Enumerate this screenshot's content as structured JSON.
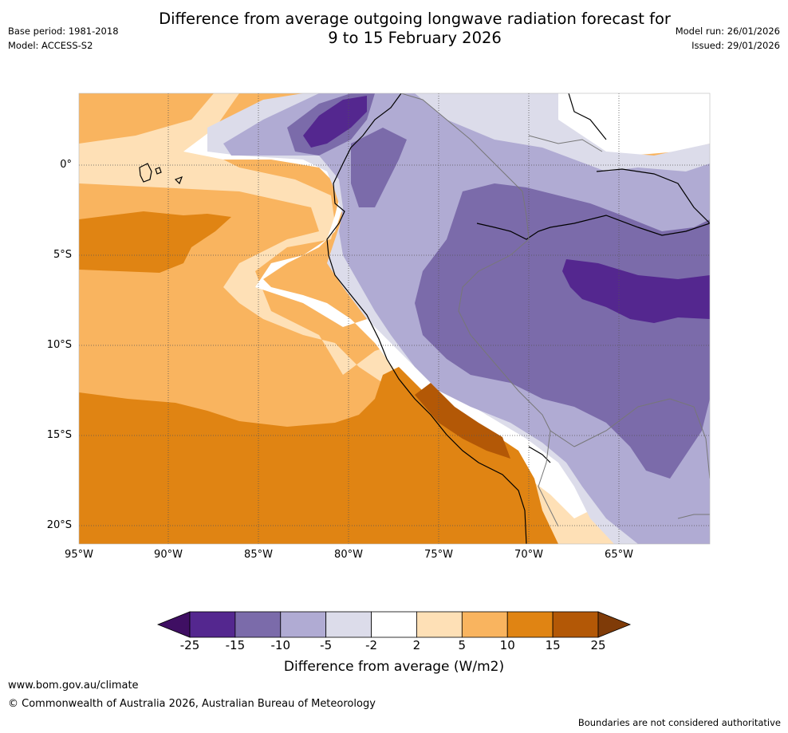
{
  "title_line1": "Difference from average outgoing longwave radiation forecast for",
  "title_line2": "9 to 15 February 2026",
  "base_period": "Base period: 1981-2018",
  "model": "Model: ACCESS-S2",
  "model_run": "Model run: 26/01/2026",
  "issued": "Issued: 29/01/2026",
  "map": {
    "lat_labels": [
      "0°",
      "5°S",
      "10°S",
      "15°S",
      "20°S"
    ],
    "lon_labels": [
      "95°W",
      "90°W",
      "85°W",
      "80°W",
      "75°W",
      "70°W",
      "65°W"
    ]
  },
  "colorbar": {
    "ticks": [
      "-25",
      "-15",
      "-10",
      "-5",
      "-2",
      "2",
      "5",
      "10",
      "15",
      "25"
    ],
    "colors": [
      "#3f0f63",
      "#54278f",
      "#7b6baa",
      "#b0abd3",
      "#dcdcea",
      "#ffffff",
      "#fee0b6",
      "#f9b45f",
      "#e08413",
      "#b35806",
      "#7f3b08"
    ],
    "title": "Difference from average (W/m2)"
  },
  "footer": {
    "url": "www.bom.gov.au/climate",
    "copyright": "© Commonwealth of Australia 2026, Australian Bureau of Meteorology",
    "disclaimer": "Boundaries are not considered authoritative"
  }
}
